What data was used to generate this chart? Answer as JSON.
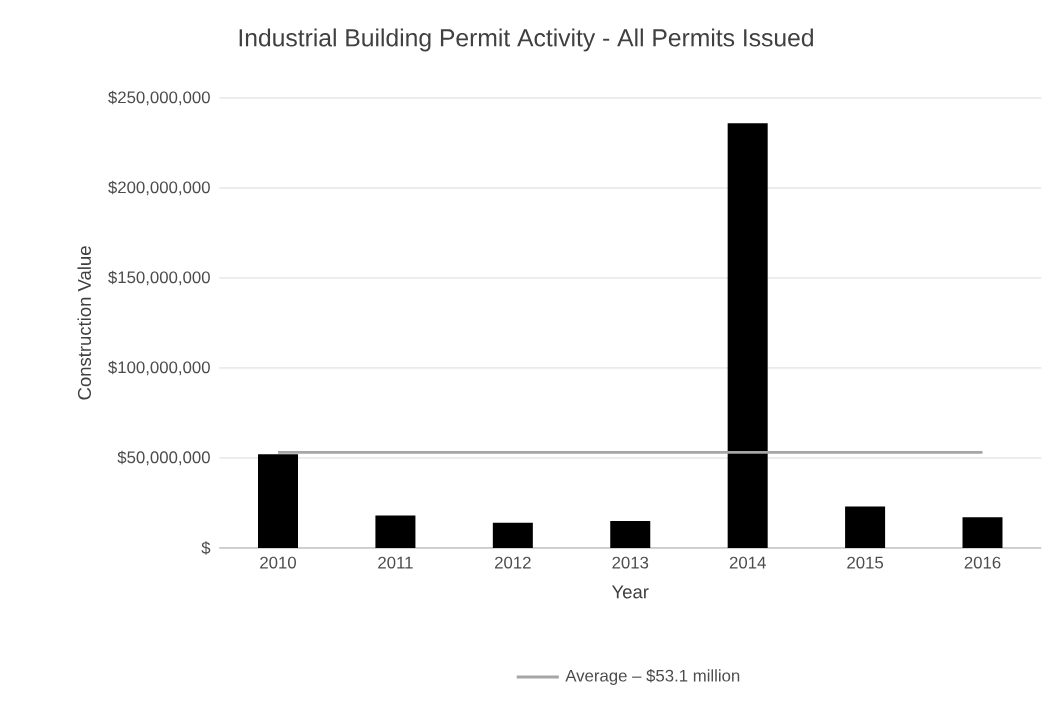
{
  "chart_data": {
    "type": "bar",
    "title": "Industrial Building Permit Activity - All Permits Issued",
    "xlabel": "Year",
    "ylabel": "Construction Value",
    "categories": [
      "2010",
      "2011",
      "2012",
      "2013",
      "2014",
      "2015",
      "2016"
    ],
    "series": [
      {
        "color": "#000000",
        "values": [
          52000000,
          18000000,
          14000000,
          15000000,
          236000000,
          23000000,
          17000000
        ]
      },
      {
        "type": "line",
        "name": "Average – $53.1 million",
        "color": "#a6a6a6",
        "values": [
          53100000,
          53100000,
          53100000,
          53100000,
          53100000,
          53100000,
          53100000
        ]
      }
    ],
    "ylim": [
      0,
      250000000
    ],
    "yticks": [
      {
        "value": 0,
        "label": "$"
      },
      {
        "value": 50000000,
        "label": "$50,000,000"
      },
      {
        "value": 100000000,
        "label": "$100,000,000"
      },
      {
        "value": 150000000,
        "label": "$150,000,000"
      },
      {
        "value": 200000000,
        "label": "$200,000,000"
      },
      {
        "value": 250000000,
        "label": "$250,000,000"
      }
    ],
    "grid": "y",
    "legend": "bottom",
    "marker": "none",
    "line_style": "solid"
  }
}
